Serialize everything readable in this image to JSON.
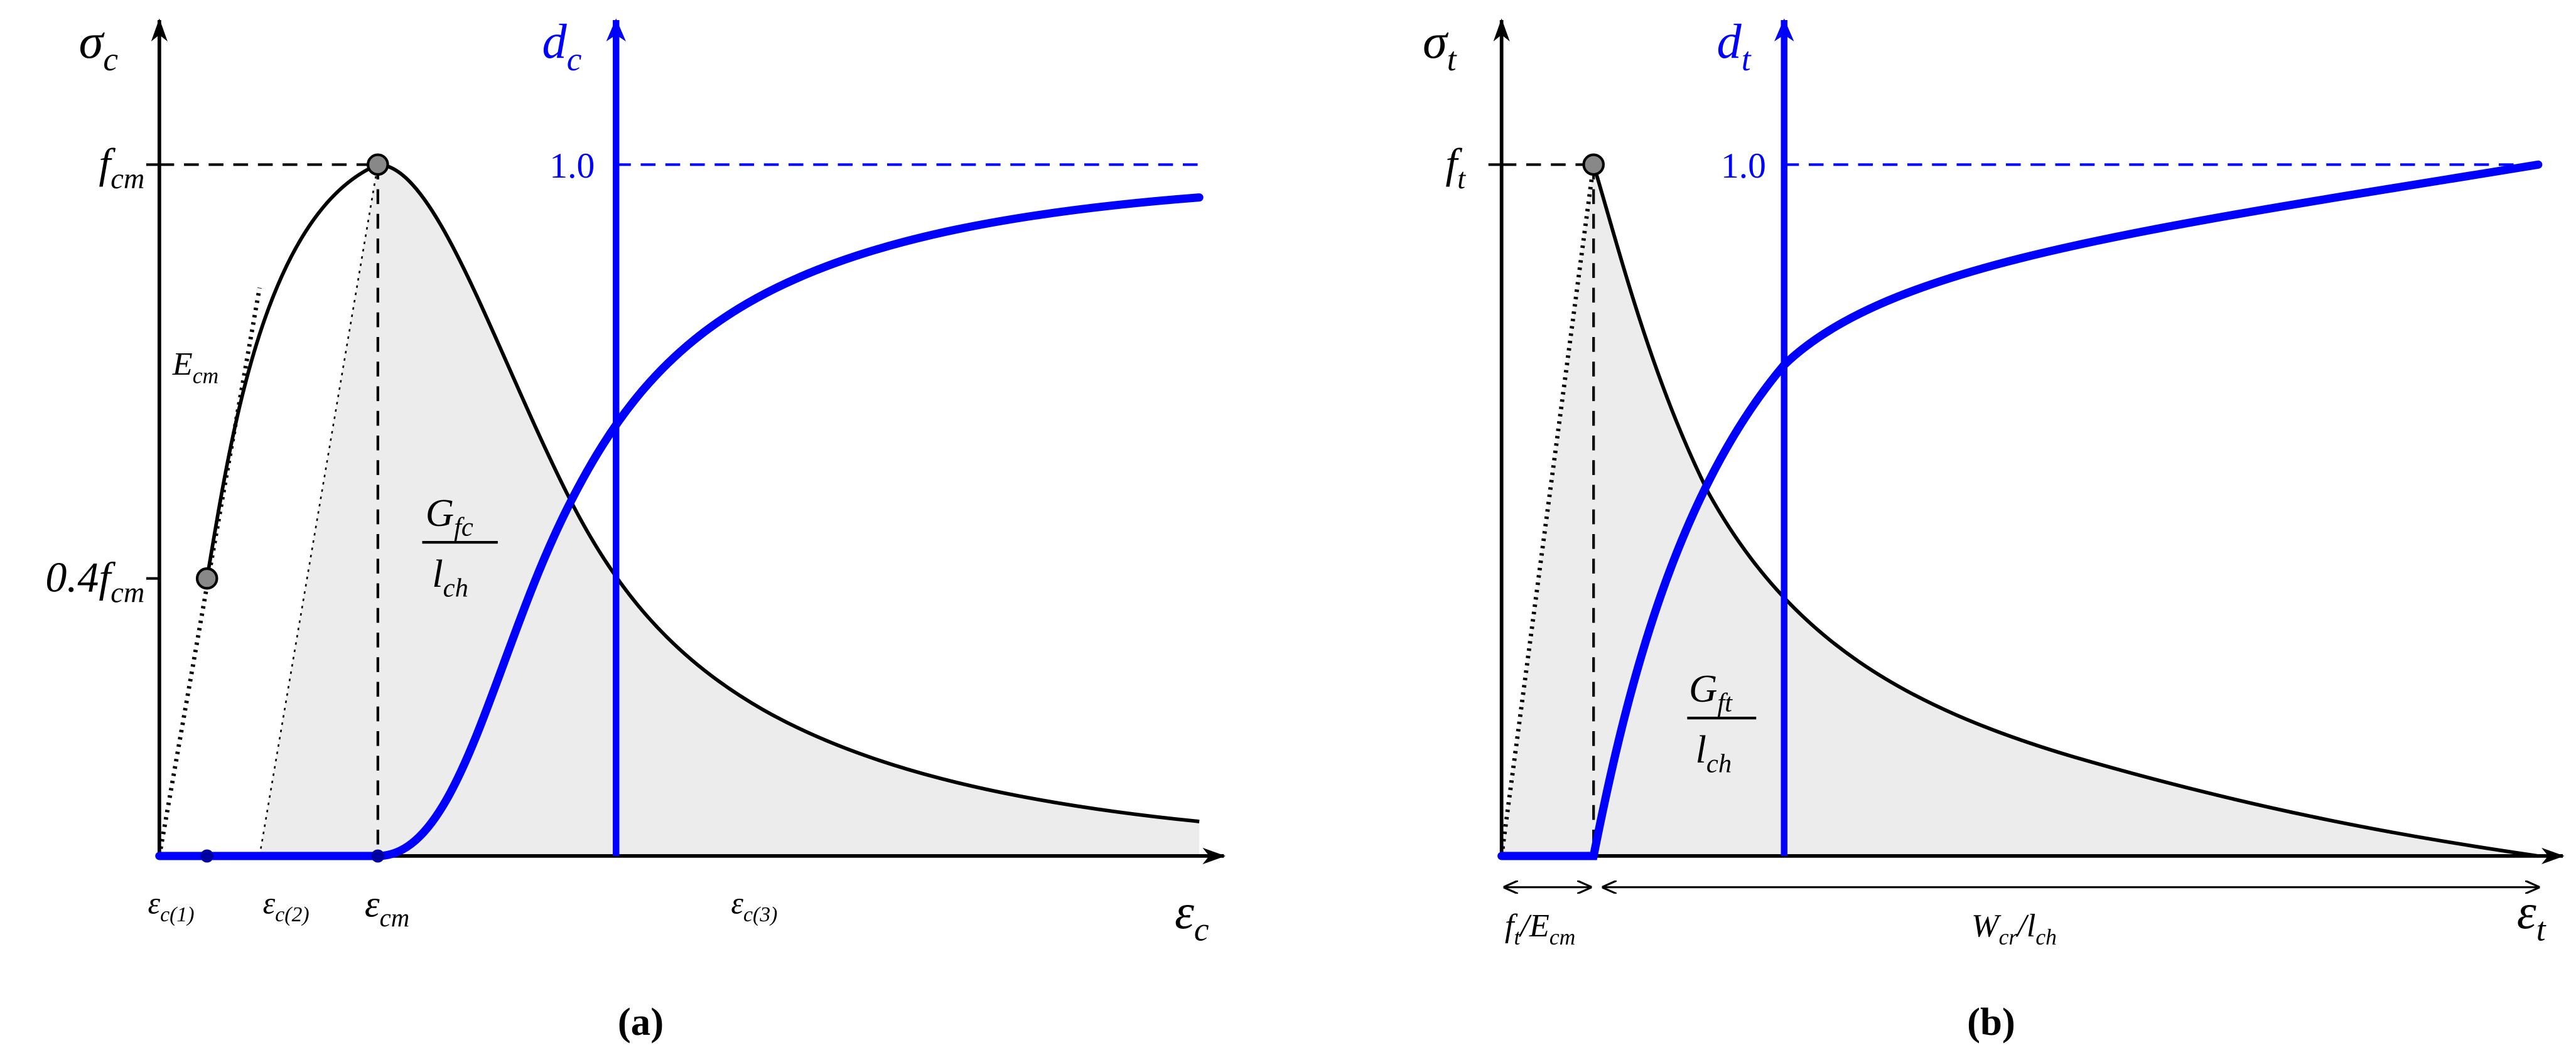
{
  "panels": [
    {
      "caption": "(a)",
      "labels": {
        "stress_axis": [
          "σ",
          "c"
        ],
        "damage_axis": [
          "d",
          "c"
        ],
        "peak": [
          "f",
          "cm"
        ],
        "damage_max": [
          "1.0"
        ],
        "elastic_limit": [
          "0.4f",
          "cm"
        ],
        "modulus": [
          "E",
          "cm"
        ],
        "energy_numerator": [
          "G",
          "fc"
        ],
        "energy_denominator": [
          "l",
          "ch"
        ],
        "strain_1": [
          "ε",
          "c(1)"
        ],
        "strain_2": [
          "ε",
          "c(2)"
        ],
        "strain_peak": [
          "ε",
          "cm"
        ],
        "strain_3": [
          "ε",
          "c(3)"
        ],
        "strain_axis": [
          "ε",
          "c"
        ]
      }
    },
    {
      "caption": "(b)",
      "labels": {
        "stress_axis": [
          "σ",
          "t"
        ],
        "damage_axis": [
          "d",
          "t"
        ],
        "peak": [
          "f",
          "t"
        ],
        "damage_max": [
          "1.0"
        ],
        "energy_numerator": [
          "G",
          "ft"
        ],
        "energy_denominator": [
          "l",
          "ch"
        ],
        "elastic_strain": [
          "f",
          "t",
          "/E",
          "cm"
        ],
        "crack_strain": [
          "W",
          "cr",
          "/l",
          "ch"
        ],
        "strain_axis": [
          "ε",
          "t"
        ]
      }
    }
  ]
}
